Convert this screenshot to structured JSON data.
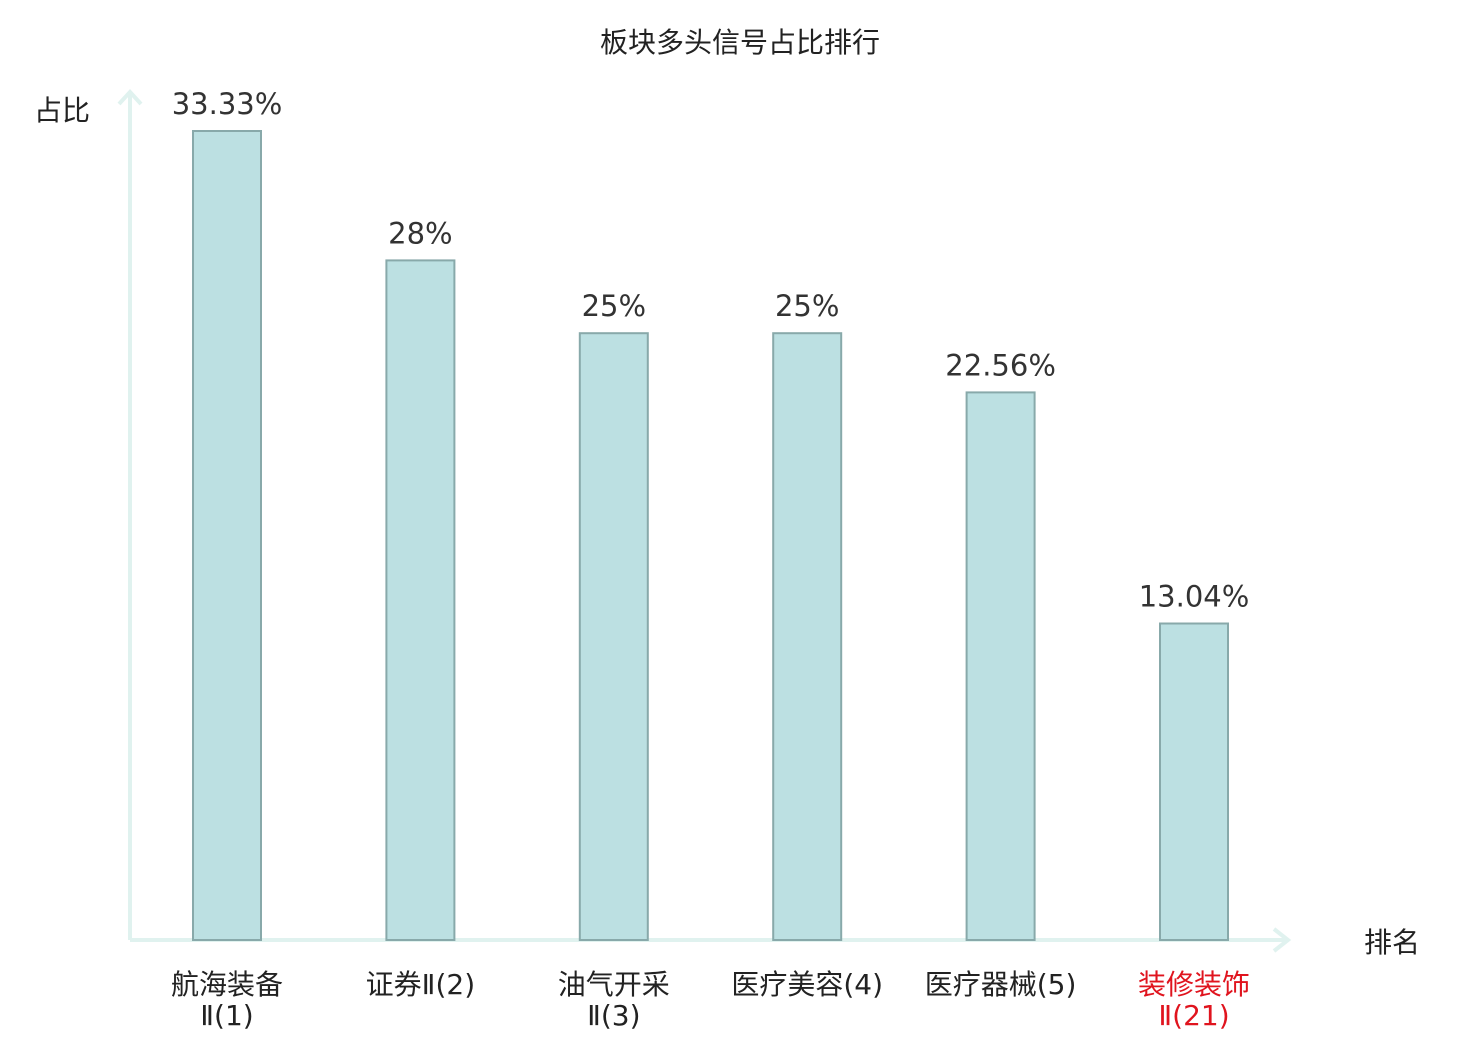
{
  "chart_data": {
    "type": "bar",
    "title": "板块多头信号占比排行",
    "xlabel": "排名",
    "ylabel": "占比",
    "categories": [
      [
        "航海装备",
        "Ⅱ(1)"
      ],
      [
        "证券Ⅱ(2)"
      ],
      [
        "油气开采",
        "Ⅱ(3)"
      ],
      [
        "医疗美容(4)"
      ],
      [
        "医疗器械(5)"
      ],
      [
        "装修装饰",
        "Ⅱ(21)"
      ]
    ],
    "values": [
      33.33,
      28,
      25,
      25,
      22.56,
      13.04
    ],
    "value_labels": [
      "33.33%",
      "28%",
      "25%",
      "25%",
      "22.56%",
      "13.04%"
    ],
    "highlight_index": 5,
    "ylim": [
      0,
      33.33
    ],
    "grid": false,
    "legend": "none"
  },
  "colors": {
    "bar_fill": "#bce0e2",
    "bar_stroke": "#88a9aa",
    "axis": "#e0f2ef",
    "text": "#333333",
    "title": "#222222",
    "highlight": "#e0141e"
  }
}
